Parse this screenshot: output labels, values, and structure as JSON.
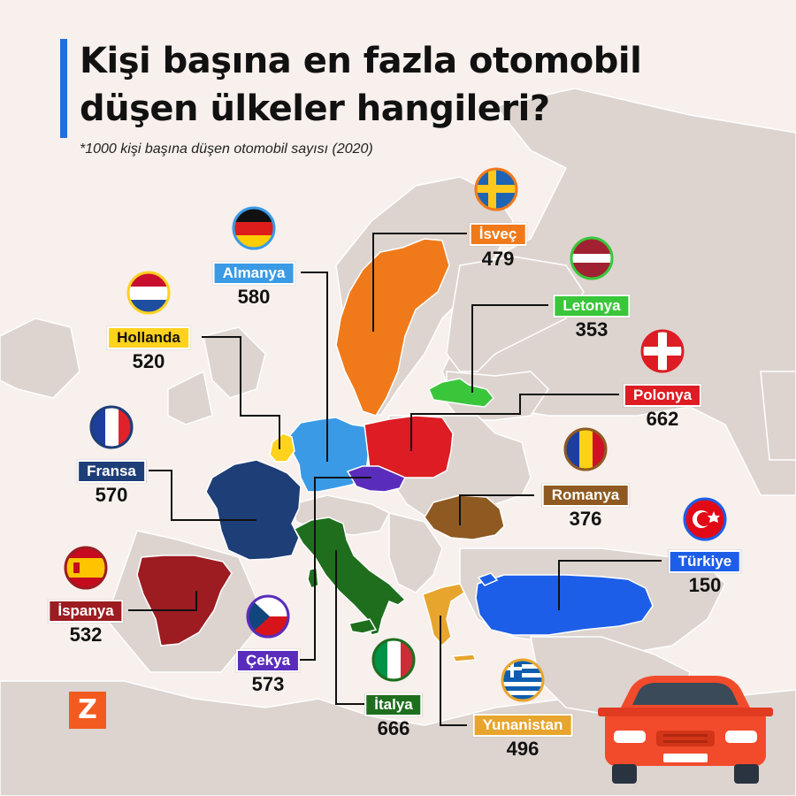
{
  "title_line1": "Kişi başına en fazla otomobil",
  "title_line2": "düşen ülkeler hangileri?",
  "subtitle": "*1000 kişi başına düşen otomobil sayısı (2020)",
  "logo_text": "Z",
  "countries": {
    "isvec": {
      "name": "İsveç",
      "value": "479",
      "color": "#f07a1a",
      "flag": "sweden-flag-icon"
    },
    "almanya": {
      "name": "Almanya",
      "value": "580",
      "color": "#3a9ae6",
      "flag": "germany-flag-icon"
    },
    "hollanda": {
      "name": "Hollanda",
      "value": "520",
      "color": "#ffd21e",
      "flag": "netherlands-flag-icon"
    },
    "letonya": {
      "name": "Letonya",
      "value": "353",
      "color": "#3ac63a",
      "flag": "latvia-flag-icon"
    },
    "polonya": {
      "name": "Polonya",
      "value": "662",
      "color": "#dd1c24",
      "flag": "poland-flag-icon"
    },
    "fransa": {
      "name": "Fransa",
      "value": "570",
      "color": "#1e3e78",
      "flag": "france-flag-icon"
    },
    "romanya": {
      "name": "Romanya",
      "value": "376",
      "color": "#8e5a22",
      "flag": "romania-flag-icon"
    },
    "turkiye": {
      "name": "Türkiye",
      "value": "150",
      "color": "#1c5ee8",
      "flag": "turkey-flag-icon"
    },
    "ispanya": {
      "name": "İspanya",
      "value": "532",
      "color": "#9c1c22",
      "flag": "spain-flag-icon"
    },
    "cekya": {
      "name": "Çekya",
      "value": "573",
      "color": "#5a2cbc",
      "flag": "czechia-flag-icon"
    },
    "italya": {
      "name": "İtalya",
      "value": "666",
      "color": "#1e6e1e",
      "flag": "italy-flag-icon"
    },
    "yunanistan": {
      "name": "Yunanistan",
      "value": "496",
      "color": "#e7a52e",
      "flag": "greece-flag-icon"
    }
  },
  "colors": {
    "background": "#f7f0ec",
    "land": "#ddd4d0",
    "border": "#ffffff",
    "accent_bar": "#1f6fe0",
    "logo": "#f25a1f",
    "car": "#f24b2c"
  }
}
